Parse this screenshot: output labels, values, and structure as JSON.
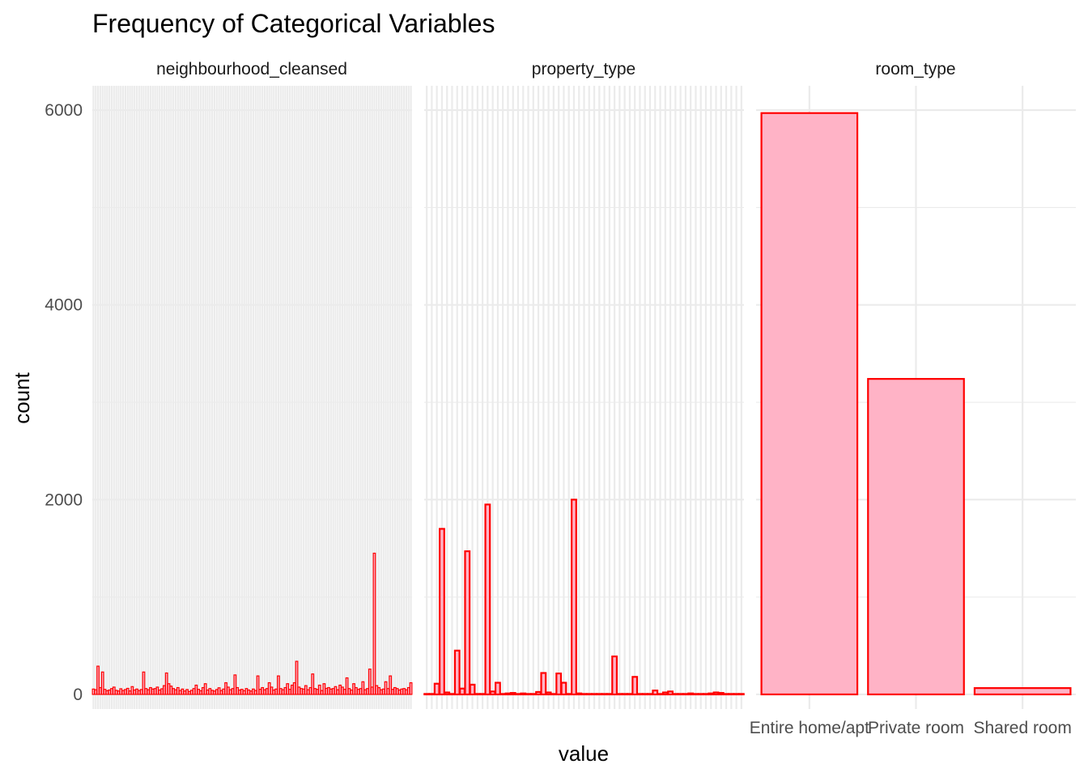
{
  "chart_data": {
    "type": "bar",
    "title": "Frequency of Categorical Variables",
    "xlabel": "value",
    "ylabel": "count",
    "ylim": [
      -150,
      6250
    ],
    "y_ticks": [
      0,
      2000,
      4000,
      6000
    ],
    "grid": true,
    "theme": "minimal",
    "fill_color": "#ffb3c6",
    "stroke_color": "#ff0000",
    "facets": [
      {
        "name": "neighbourhood_cleansed",
        "category_count": 140,
        "values": [
          55,
          48,
          290,
          70,
          230,
          52,
          38,
          45,
          60,
          75,
          42,
          35,
          58,
          40,
          50,
          62,
          36,
          80,
          45,
          55,
          40,
          50,
          230,
          60,
          48,
          70,
          55,
          60,
          75,
          45,
          58,
          90,
          220,
          110,
          85,
          60,
          48,
          70,
          40,
          55,
          35,
          50,
          30,
          42,
          60,
          95,
          52,
          38,
          70,
          110,
          45,
          60,
          42,
          35,
          50,
          68,
          40,
          55,
          120,
          75,
          48,
          60,
          200,
          70,
          45,
          52,
          38,
          60,
          45,
          35,
          55,
          40,
          190,
          52,
          70,
          48,
          60,
          120,
          75,
          45,
          55,
          190,
          60,
          48,
          70,
          110,
          52,
          95,
          120,
          340,
          75,
          60,
          55,
          90,
          48,
          70,
          210,
          60,
          52,
          95,
          40,
          110,
          62,
          70,
          55,
          60,
          80,
          48,
          95,
          75,
          52,
          170,
          60,
          45,
          110,
          70,
          52,
          60,
          130,
          48,
          60,
          260,
          75,
          1450,
          90,
          70,
          48,
          55,
          130,
          60,
          190,
          52,
          70,
          60,
          45,
          55,
          60,
          48,
          70,
          120
        ],
        "tick_labels_illegible": true
      },
      {
        "name": "property_type",
        "category_count": 63,
        "values": [
          0,
          0,
          110,
          1700,
          20,
          0,
          450,
          60,
          1470,
          100,
          0,
          0,
          1950,
          30,
          120,
          0,
          10,
          15,
          0,
          10,
          0,
          0,
          25,
          220,
          20,
          0,
          215,
          120,
          0,
          2000,
          10,
          0,
          0,
          5,
          0,
          5,
          0,
          390,
          0,
          5,
          0,
          180,
          0,
          0,
          0,
          40,
          0,
          20,
          30,
          5,
          0,
          5,
          10,
          0,
          5,
          5,
          10,
          20,
          15,
          0,
          5,
          5,
          5
        ],
        "tick_labels_illegible": true
      },
      {
        "name": "room_type",
        "categories": [
          "Entire home/apt",
          "Private room",
          "Shared room"
        ],
        "values": [
          5970,
          3240,
          65
        ],
        "x_tick_labels": [
          "Entire home/apt",
          "Private room",
          "Shared room"
        ]
      }
    ]
  }
}
